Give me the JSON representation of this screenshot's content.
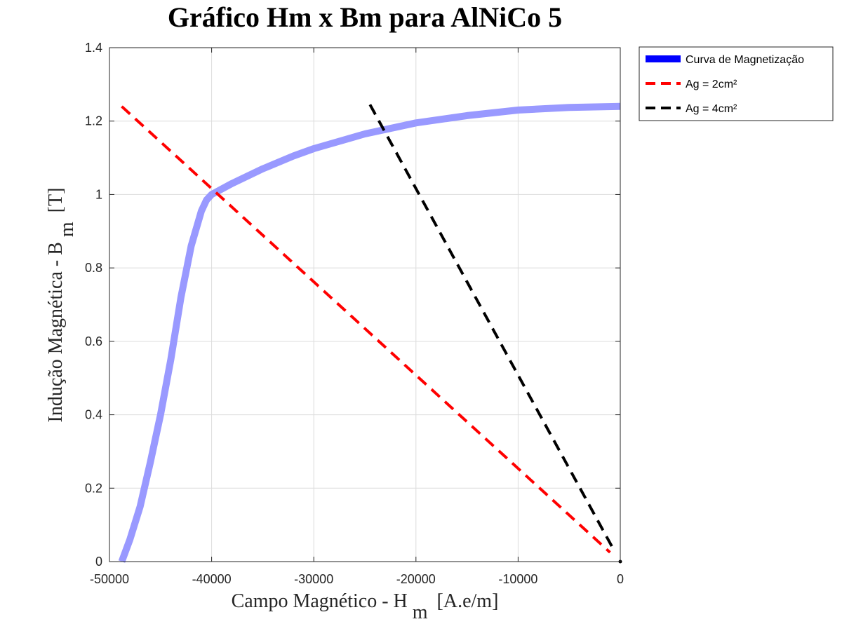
{
  "chart_data": {
    "type": "line",
    "title": "Gráfico Hm x Bm para AlNiCo 5",
    "xlabel": {
      "main": "Campo Magnético - H",
      "sub": "m",
      "unit": "[A.e/m]"
    },
    "ylabel": {
      "main": "Indução Magnética - B",
      "sub": "m",
      "unit": "[T]"
    },
    "xlim": [
      -50000,
      0
    ],
    "ylim": [
      0,
      1.4
    ],
    "xticks": [
      -50000,
      -40000,
      -30000,
      -20000,
      -10000,
      0
    ],
    "xtick_labels": [
      "-50000",
      "-40000",
      "-30000",
      "-20000",
      "-10000",
      "0"
    ],
    "yticks": [
      0,
      0.2,
      0.4,
      0.6,
      0.8,
      1.0,
      1.2,
      1.4
    ],
    "ytick_labels": [
      "0",
      "0.2",
      "0.4",
      "0.6",
      "0.8",
      "1",
      "1.2",
      "1.4"
    ],
    "grid": true,
    "legend_position": "outside-top-right",
    "series": [
      {
        "name": "Curva de Magnetização",
        "style": "solid-thick",
        "color": "#0000ff",
        "plot_color": "#9999ff",
        "x": [
          -48800,
          -48000,
          -47000,
          -46000,
          -45000,
          -44000,
          -43000,
          -42000,
          -41000,
          -40500,
          -40000,
          -38000,
          -35000,
          -32000,
          -30000,
          -25000,
          -20000,
          -15000,
          -10000,
          -5000,
          0
        ],
        "y": [
          0,
          0.06,
          0.15,
          0.27,
          0.4,
          0.55,
          0.72,
          0.86,
          0.955,
          0.985,
          1.0,
          1.03,
          1.07,
          1.105,
          1.125,
          1.165,
          1.195,
          1.215,
          1.23,
          1.237,
          1.24
        ]
      },
      {
        "name": "Ag = 2cm²",
        "style": "dashed",
        "color": "#ff0000",
        "x": [
          -48800,
          -1000
        ],
        "y": [
          1.24,
          0.025
        ]
      },
      {
        "name": "Ag = 4cm²",
        "style": "dashed",
        "color": "#000000",
        "x": [
          -24500,
          -600
        ],
        "y": [
          1.245,
          0.03
        ]
      }
    ]
  }
}
